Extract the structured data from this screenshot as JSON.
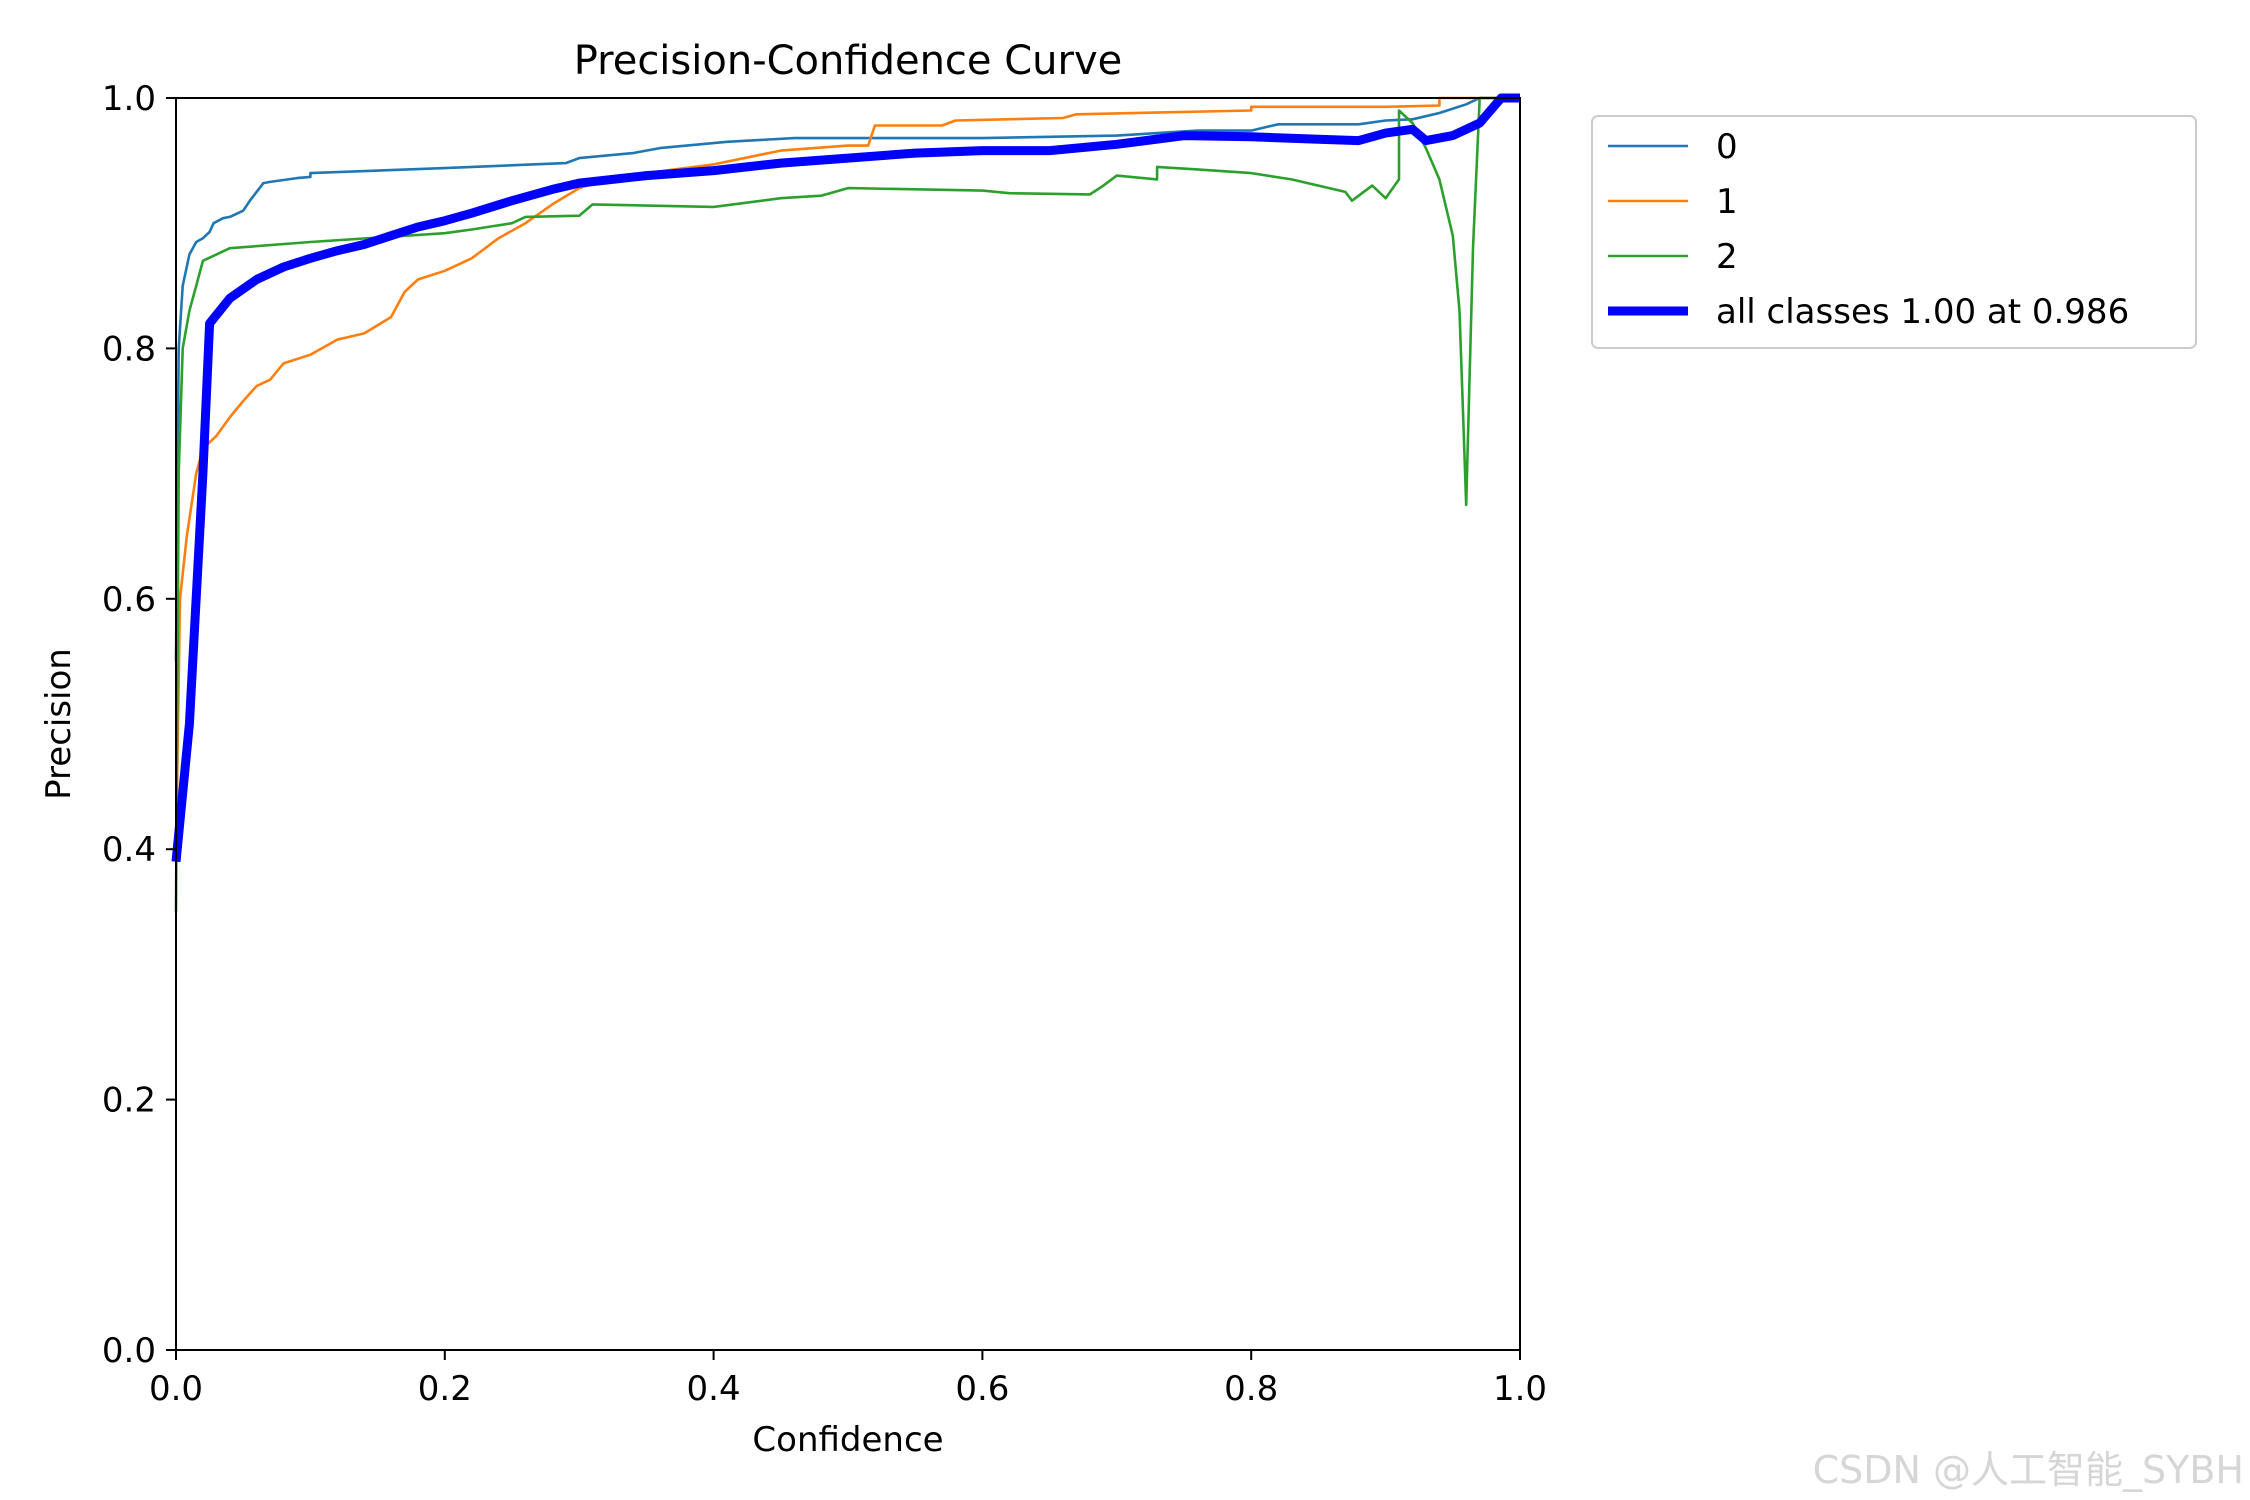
{
  "chart_data": {
    "type": "line",
    "title": "Precision-Confidence Curve",
    "xlabel": "Confidence",
    "ylabel": "Precision",
    "xlim": [
      0,
      1
    ],
    "ylim": [
      0,
      1
    ],
    "xticks": [
      "0.0",
      "0.2",
      "0.4",
      "0.6",
      "0.8",
      "1.0"
    ],
    "yticks": [
      "0.0",
      "0.2",
      "0.4",
      "0.6",
      "0.8",
      "1.0"
    ],
    "grid": false,
    "legend_position": "outside-top-right",
    "series": [
      {
        "name": "0",
        "color": "#1f77b4",
        "line_style": "thin",
        "points": [
          [
            0,
            0.55
          ],
          [
            0.002,
            0.8
          ],
          [
            0.005,
            0.85
          ],
          [
            0.01,
            0.875
          ],
          [
            0.015,
            0.885
          ],
          [
            0.02,
            0.888
          ],
          [
            0.025,
            0.893
          ],
          [
            0.028,
            0.9
          ],
          [
            0.035,
            0.904
          ],
          [
            0.04,
            0.905
          ],
          [
            0.05,
            0.91
          ],
          [
            0.055,
            0.918
          ],
          [
            0.06,
            0.925
          ],
          [
            0.065,
            0.932
          ],
          [
            0.07,
            0.933
          ],
          [
            0.09,
            0.936
          ],
          [
            0.1,
            0.937
          ],
          [
            0.1,
            0.94
          ],
          [
            0.2,
            0.944
          ],
          [
            0.29,
            0.948
          ],
          [
            0.3,
            0.952
          ],
          [
            0.34,
            0.956
          ],
          [
            0.36,
            0.96
          ],
          [
            0.41,
            0.965
          ],
          [
            0.46,
            0.968
          ],
          [
            0.52,
            0.968
          ],
          [
            0.6,
            0.968
          ],
          [
            0.7,
            0.97
          ],
          [
            0.76,
            0.974
          ],
          [
            0.8,
            0.974
          ],
          [
            0.82,
            0.979
          ],
          [
            0.88,
            0.979
          ],
          [
            0.9,
            0.982
          ],
          [
            0.92,
            0.983
          ],
          [
            0.94,
            0.988
          ],
          [
            0.96,
            0.995
          ],
          [
            0.97,
            1.0
          ],
          [
            1.0,
            1.0
          ]
        ]
      },
      {
        "name": "1",
        "color": "#ff7f0e",
        "line_style": "thin",
        "points": [
          [
            0,
            0.4
          ],
          [
            0.003,
            0.6
          ],
          [
            0.008,
            0.65
          ],
          [
            0.015,
            0.7
          ],
          [
            0.02,
            0.72
          ],
          [
            0.03,
            0.73
          ],
          [
            0.04,
            0.745
          ],
          [
            0.05,
            0.758
          ],
          [
            0.06,
            0.77
          ],
          [
            0.07,
            0.775
          ],
          [
            0.08,
            0.788
          ],
          [
            0.1,
            0.795
          ],
          [
            0.12,
            0.807
          ],
          [
            0.14,
            0.812
          ],
          [
            0.16,
            0.825
          ],
          [
            0.17,
            0.845
          ],
          [
            0.18,
            0.855
          ],
          [
            0.2,
            0.862
          ],
          [
            0.22,
            0.872
          ],
          [
            0.24,
            0.888
          ],
          [
            0.26,
            0.9
          ],
          [
            0.28,
            0.915
          ],
          [
            0.3,
            0.928
          ],
          [
            0.32,
            0.935
          ],
          [
            0.35,
            0.94
          ],
          [
            0.4,
            0.947
          ],
          [
            0.45,
            0.958
          ],
          [
            0.5,
            0.962
          ],
          [
            0.515,
            0.962
          ],
          [
            0.52,
            0.978
          ],
          [
            0.57,
            0.978
          ],
          [
            0.58,
            0.982
          ],
          [
            0.66,
            0.984
          ],
          [
            0.67,
            0.987
          ],
          [
            0.8,
            0.99
          ],
          [
            0.8,
            0.993
          ],
          [
            0.9,
            0.993
          ],
          [
            0.94,
            0.994
          ],
          [
            0.94,
            1.0
          ],
          [
            1.0,
            1.0
          ]
        ]
      },
      {
        "name": "2",
        "color": "#2ca02c",
        "line_style": "thin",
        "points": [
          [
            0,
            0.35
          ],
          [
            0.002,
            0.7
          ],
          [
            0.005,
            0.8
          ],
          [
            0.01,
            0.83
          ],
          [
            0.015,
            0.85
          ],
          [
            0.02,
            0.87
          ],
          [
            0.04,
            0.88
          ],
          [
            0.1,
            0.885
          ],
          [
            0.2,
            0.892
          ],
          [
            0.22,
            0.895
          ],
          [
            0.25,
            0.9
          ],
          [
            0.26,
            0.905
          ],
          [
            0.3,
            0.906
          ],
          [
            0.31,
            0.915
          ],
          [
            0.4,
            0.913
          ],
          [
            0.45,
            0.92
          ],
          [
            0.48,
            0.922
          ],
          [
            0.5,
            0.928
          ],
          [
            0.6,
            0.926
          ],
          [
            0.62,
            0.924
          ],
          [
            0.68,
            0.923
          ],
          [
            0.69,
            0.93
          ],
          [
            0.7,
            0.938
          ],
          [
            0.73,
            0.935
          ],
          [
            0.73,
            0.945
          ],
          [
            0.76,
            0.943
          ],
          [
            0.8,
            0.94
          ],
          [
            0.83,
            0.935
          ],
          [
            0.87,
            0.925
          ],
          [
            0.875,
            0.918
          ],
          [
            0.88,
            0.922
          ],
          [
            0.89,
            0.93
          ],
          [
            0.9,
            0.92
          ],
          [
            0.91,
            0.935
          ],
          [
            0.91,
            0.99
          ],
          [
            0.92,
            0.98
          ],
          [
            0.93,
            0.96
          ],
          [
            0.94,
            0.935
          ],
          [
            0.95,
            0.89
          ],
          [
            0.955,
            0.83
          ],
          [
            0.96,
            0.675
          ],
          [
            0.965,
            0.88
          ],
          [
            0.97,
            1.0
          ],
          [
            1.0,
            1.0
          ]
        ]
      },
      {
        "name": "all classes 1.00 at 0.986",
        "color": "#0000ff",
        "line_style": "thick",
        "points": [
          [
            0,
            0.39
          ],
          [
            0.01,
            0.5
          ],
          [
            0.02,
            0.7
          ],
          [
            0.025,
            0.82
          ],
          [
            0.04,
            0.84
          ],
          [
            0.06,
            0.855
          ],
          [
            0.08,
            0.865
          ],
          [
            0.1,
            0.872
          ],
          [
            0.12,
            0.878
          ],
          [
            0.14,
            0.883
          ],
          [
            0.16,
            0.89
          ],
          [
            0.18,
            0.897
          ],
          [
            0.2,
            0.902
          ],
          [
            0.22,
            0.908
          ],
          [
            0.25,
            0.918
          ],
          [
            0.28,
            0.927
          ],
          [
            0.3,
            0.932
          ],
          [
            0.35,
            0.938
          ],
          [
            0.4,
            0.942
          ],
          [
            0.45,
            0.948
          ],
          [
            0.5,
            0.952
          ],
          [
            0.55,
            0.956
          ],
          [
            0.6,
            0.958
          ],
          [
            0.65,
            0.958
          ],
          [
            0.7,
            0.963
          ],
          [
            0.75,
            0.97
          ],
          [
            0.8,
            0.969
          ],
          [
            0.85,
            0.967
          ],
          [
            0.88,
            0.966
          ],
          [
            0.9,
            0.972
          ],
          [
            0.92,
            0.975
          ],
          [
            0.93,
            0.966
          ],
          [
            0.95,
            0.97
          ],
          [
            0.97,
            0.98
          ],
          [
            0.986,
            1.0
          ],
          [
            1.0,
            1.0
          ]
        ]
      }
    ]
  },
  "watermark": "CSDN @人工智能_SYBH"
}
